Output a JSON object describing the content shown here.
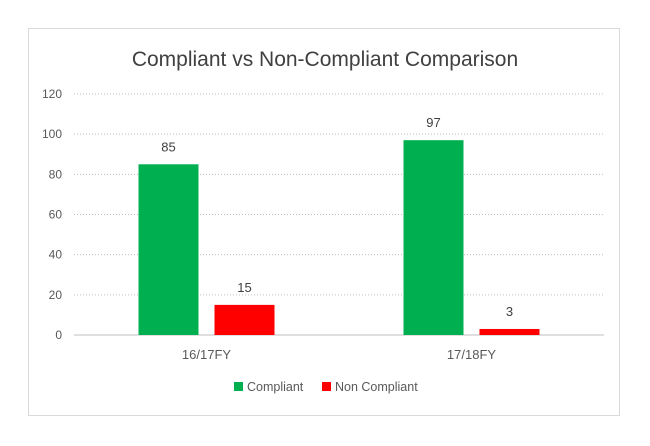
{
  "chart_data": {
    "type": "bar",
    "title": "Compliant vs Non-Compliant Comparison",
    "categories": [
      "16/17FY",
      "17/18FY"
    ],
    "series": [
      {
        "name": "Compliant",
        "values": [
          85,
          97
        ],
        "color": "#00b050"
      },
      {
        "name": "Non Compliant",
        "values": [
          15,
          3
        ],
        "color": "#ff0000"
      }
    ],
    "data_labels": [
      [
        "85",
        "97"
      ],
      [
        "15",
        "3"
      ]
    ],
    "y_ticks": [
      "0",
      "20",
      "40",
      "60",
      "80",
      "100",
      "120"
    ],
    "ylim": [
      0,
      120
    ],
    "xlabel": "",
    "ylabel": "",
    "grid": "horizontal dotted",
    "legend": "bottom"
  }
}
